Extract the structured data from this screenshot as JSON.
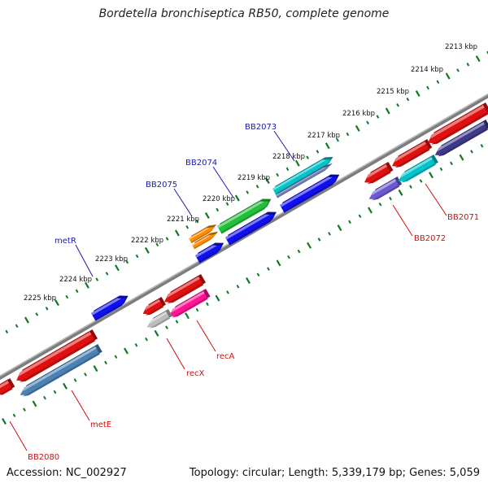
{
  "title": "Bordetella bronchiseptica RB50, complete genome",
  "footer": {
    "accession": "Accession: NC_002927",
    "summary": "Topology: circular; Length: 5,339,179 bp; Genes: 5,059"
  },
  "ticks": [
    "2213 kbp",
    "2214 kbp",
    "2215 kbp",
    "2216 kbp",
    "2217 kbp",
    "2218 kbp",
    "2219 kbp",
    "2220 kbp",
    "2221 kbp",
    "2222 kbp",
    "2223 kbp",
    "2224 kbp",
    "2225 kbp"
  ],
  "forward_genes": [
    {
      "name": "BB2073",
      "color": "#00c4cc"
    },
    {
      "name": "BB2074",
      "color": "#22c03a"
    },
    {
      "name": "BB2075",
      "color": "#ff8c00"
    },
    {
      "name": "metR",
      "color": "#1010ee"
    }
  ],
  "reverse_genes": [
    {
      "name": "BB2071",
      "color": "#e01010"
    },
    {
      "name": "BB2072",
      "color": "#6a5acd"
    },
    {
      "name": "recA",
      "color": "#ff1493"
    },
    {
      "name": "recX",
      "color": "#bdbdbd"
    },
    {
      "name": "metE",
      "color": "#4a82b4"
    },
    {
      "name": "BB2080",
      "color": "#e01010"
    }
  ],
  "colors": {
    "forward_label": "#1a1aaa",
    "reverse_label": "#cc1111",
    "tick_mark": "#0e7a20",
    "backbone": "#808080"
  }
}
